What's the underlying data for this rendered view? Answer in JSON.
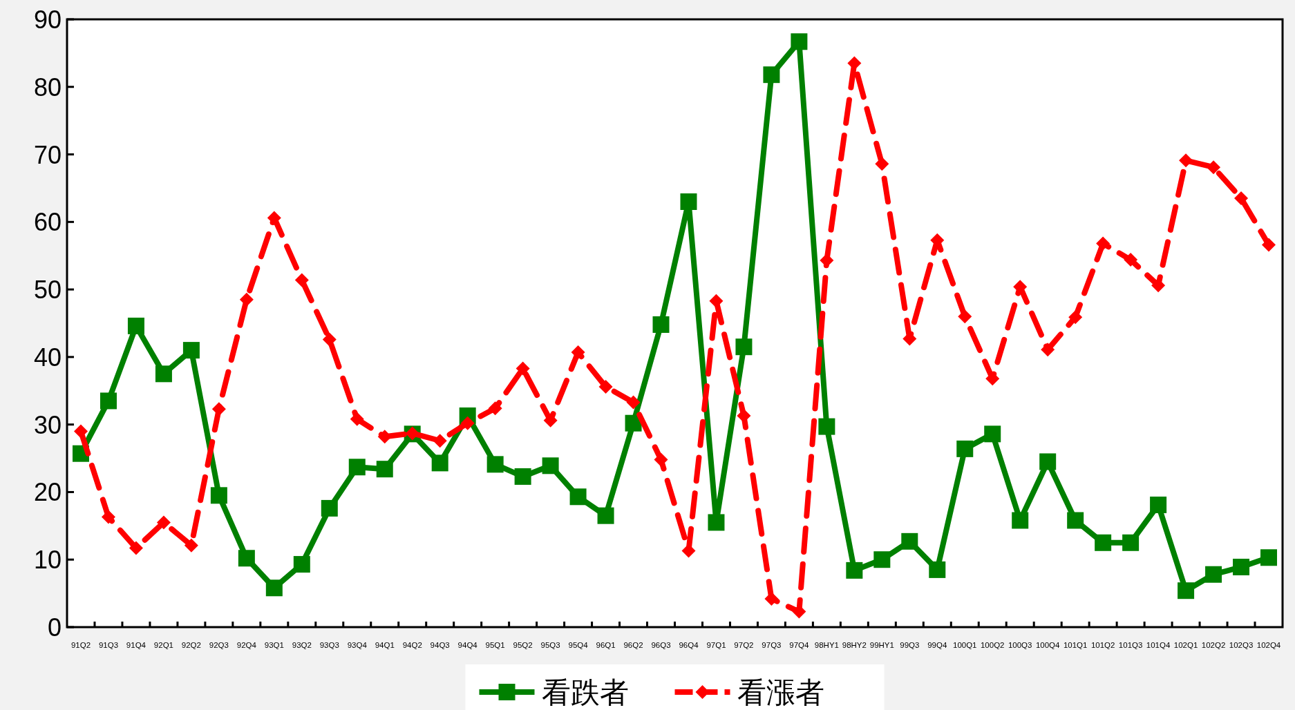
{
  "chart_data": {
    "type": "line",
    "categories": [
      "91Q2",
      "91Q3",
      "91Q4",
      "92Q1",
      "92Q2",
      "92Q3",
      "92Q4",
      "93Q1",
      "93Q2",
      "93Q3",
      "93Q4",
      "94Q1",
      "94Q2",
      "94Q3",
      "94Q4",
      "95Q1",
      "95Q2",
      "95Q3",
      "95Q4",
      "96Q1",
      "96Q2",
      "96Q3",
      "96Q4",
      "97Q1",
      "97Q2",
      "97Q3",
      "97Q4",
      "98HY1",
      "98HY2",
      "99HY1",
      "99Q3",
      "99Q4",
      "100Q1",
      "100Q2",
      "100Q3",
      "100Q4",
      "101Q1",
      "101Q2",
      "101Q3",
      "101Q4",
      "102Q1",
      "102Q2",
      "102Q3",
      "102Q4"
    ],
    "series": [
      {
        "name": "看跌者",
        "color": "#008000",
        "marker": "square",
        "line_style": "solid",
        "values": [
          25.7,
          33.5,
          44.6,
          37.5,
          41,
          19.5,
          10.2,
          5.8,
          9.3,
          17.6,
          23.7,
          23.4,
          28.6,
          24.3,
          31.3,
          24.1,
          22.3,
          23.9,
          19.3,
          16.5,
          30.2,
          44.8,
          63,
          15.5,
          41.5,
          81.8,
          86.7,
          29.7,
          8.4,
          10,
          12.7,
          8.5,
          26.4,
          28.6,
          15.8,
          24.5,
          15.8,
          12.5,
          12.5,
          18.1,
          5.4,
          7.8,
          8.9,
          10.3
        ]
      },
      {
        "name": "看漲者",
        "color": "#ff0000",
        "marker": "diamond",
        "line_style": "dashed",
        "values": [
          29,
          16.3,
          11.7,
          15.5,
          12.1,
          32.3,
          48.5,
          60.6,
          51.4,
          42.6,
          30.8,
          28.2,
          28.7,
          27.6,
          30.2,
          32.4,
          38.3,
          30.6,
          40.7,
          35.6,
          33.3,
          24.8,
          11.3,
          48.3,
          31.3,
          4.2,
          2.3,
          54.3,
          83.5,
          68.6,
          42.7,
          57.3,
          46,
          36.8,
          50.4,
          41.1,
          45.9,
          56.8,
          54.4,
          50.6,
          69.1,
          68.1,
          63.5,
          56.6
        ]
      }
    ],
    "ylim": [
      0,
      90
    ],
    "yticks": [
      0,
      10,
      20,
      30,
      40,
      50,
      60,
      70,
      80,
      90
    ],
    "grid": false,
    "legend": "bottom"
  }
}
